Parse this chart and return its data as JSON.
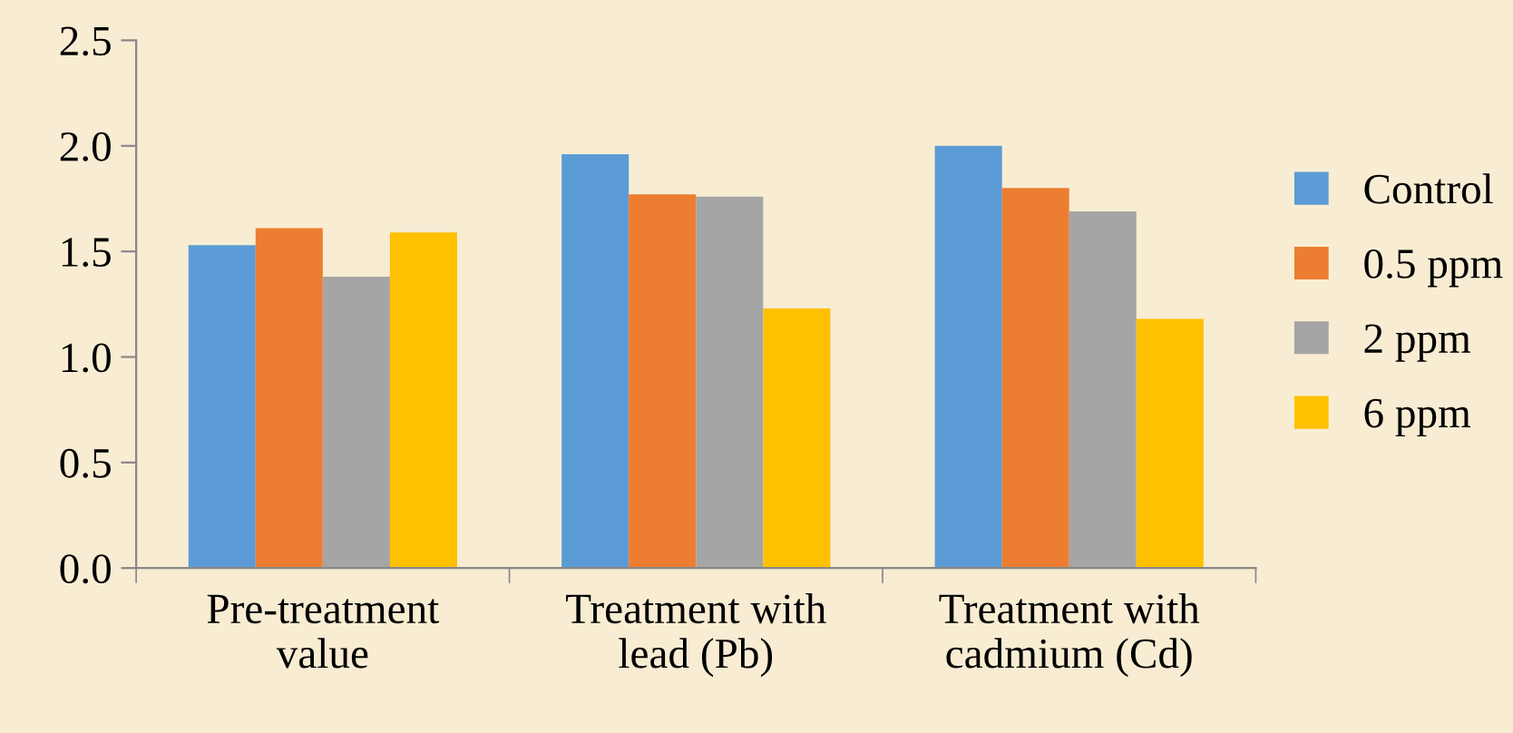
{
  "chart_data": {
    "type": "bar",
    "categories": [
      "Pre-treatment\nvalue",
      "Treatment with\nlead (Pb)",
      "Treatment with\ncadmium (Cd)"
    ],
    "series": [
      {
        "name": "Control",
        "color": "#5b9bd5",
        "values": [
          1.53,
          1.96,
          2.0
        ]
      },
      {
        "name": "0.5 ppm",
        "color": "#ed7d31",
        "values": [
          1.61,
          1.77,
          1.8
        ]
      },
      {
        "name": "2 ppm",
        "color": "#a5a5a5",
        "values": [
          1.38,
          1.76,
          1.69
        ]
      },
      {
        "name": "6 ppm",
        "color": "#ffc000",
        "values": [
          1.59,
          1.23,
          1.18
        ]
      }
    ],
    "ylim": [
      0,
      2.5
    ],
    "yticks": [
      {
        "value": 0,
        "label": "0.0"
      },
      {
        "value": 0.5,
        "label": "0.5"
      },
      {
        "value": 1,
        "label": "1.0"
      },
      {
        "value": 1.5,
        "label": "1.5"
      },
      {
        "value": 2,
        "label": "2.0"
      },
      {
        "value": 2.5,
        "label": "2.5"
      }
    ],
    "grid": false,
    "legend": "right"
  }
}
